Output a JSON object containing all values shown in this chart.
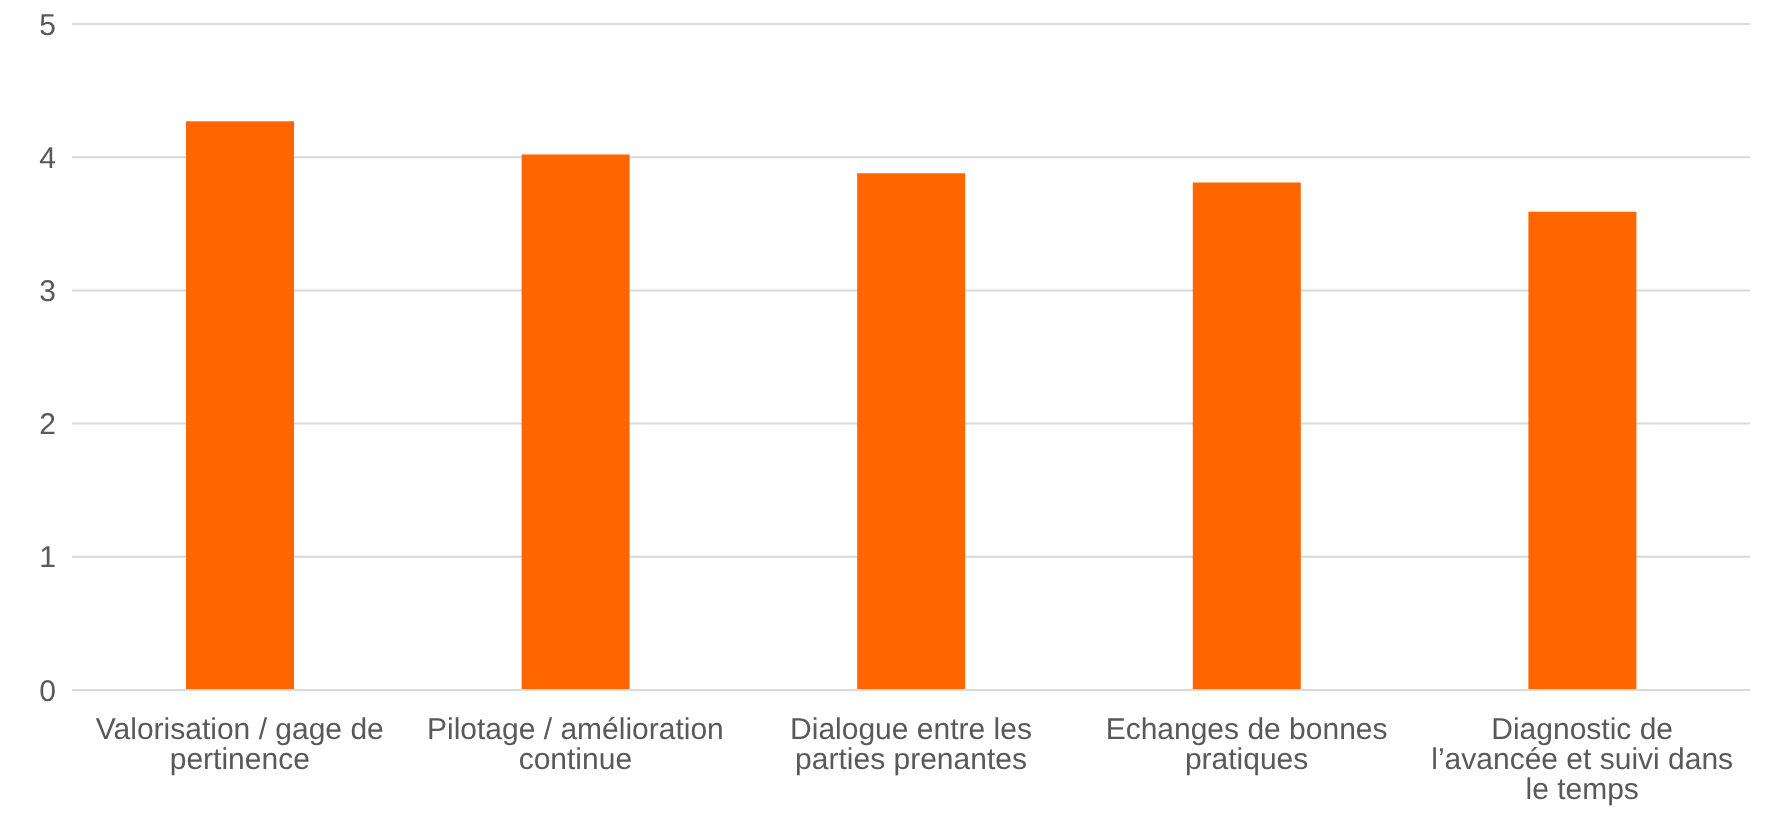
{
  "chart_data": {
    "type": "bar",
    "categories": [
      "Valorisation / gage de pertinence",
      "Pilotage / amélioration continue",
      "Dialogue entre les parties prenantes",
      "Echanges de bonnes pratiques",
      "Diagnostic de l’avancée et suivi dans le temps"
    ],
    "values": [
      4.27,
      4.02,
      3.88,
      3.81,
      3.59
    ],
    "color": "#ff6600",
    "ylim": [
      0,
      5
    ],
    "yticks": [
      0,
      1,
      2,
      3,
      4,
      5
    ],
    "grid": "y"
  }
}
